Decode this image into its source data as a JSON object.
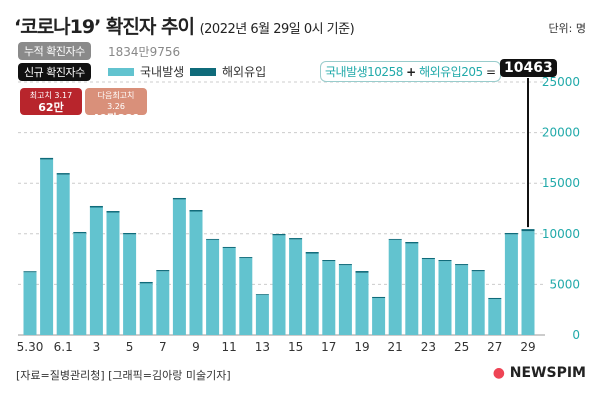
{
  "title": "‘코로나19’ 확진자 추이",
  "subtitle": "(2022년 6월 29일 0시 기준)",
  "unit": "단위: 명",
  "cumulative": {
    "label": "누적 확진자수",
    "value": "1834만9756"
  },
  "new_label": "신규 확진자수",
  "peaks": [
    {
      "label": "최고치 3.17",
      "value": "62만1328",
      "color": "#b8252c"
    },
    {
      "label": "다음최고치 3.26",
      "value": "49만881",
      "color": "#d9907a"
    }
  ],
  "callout": {
    "domestic": "국내발생10258",
    "plus": "+",
    "overseas": "해외유입205",
    "eq": "=",
    "total": "10463"
  },
  "footer": "[자료=질병관리청] [그래픽=김아랑 미술기자]",
  "logo": "NEWSPIM",
  "colors": {
    "domestic": "#62c3cf",
    "overseas": "#0f6b7a"
  },
  "chart_data": {
    "type": "bar",
    "stacked": true,
    "categories": [
      "5.30",
      "5.31",
      "6.1",
      "2",
      "3",
      "4",
      "5",
      "6",
      "7",
      "8",
      "9",
      "10",
      "11",
      "12",
      "13",
      "14",
      "15",
      "16",
      "17",
      "18",
      "19",
      "20",
      "21",
      "22",
      "23",
      "24",
      "25",
      "26",
      "27",
      "28",
      "29"
    ],
    "tick_labels": [
      "5.30",
      "6.1",
      "3",
      "5",
      "7",
      "9",
      "11",
      "13",
      "15",
      "17",
      "19",
      "21",
      "23",
      "25",
      "27",
      "29"
    ],
    "series": [
      {
        "name": "국내발생",
        "values": [
          6200,
          17350,
          15850,
          10050,
          12600,
          12100,
          9950,
          5100,
          6300,
          13400,
          12200,
          9400,
          8600,
          7600,
          3950,
          9850,
          9450,
          8050,
          7300,
          6900,
          6150,
          3650,
          9400,
          9050,
          7500,
          7300,
          6900,
          6300,
          3550,
          9950,
          10258
        ]
      },
      {
        "name": "해외유입",
        "values": [
          100,
          150,
          150,
          130,
          150,
          150,
          130,
          140,
          120,
          140,
          150,
          90,
          100,
          100,
          80,
          130,
          130,
          150,
          110,
          110,
          170,
          110,
          90,
          140,
          110,
          110,
          110,
          120,
          110,
          130,
          205
        ]
      }
    ],
    "ylim": [
      0,
      25000
    ],
    "yticks": [
      0,
      5000,
      10000,
      15000,
      20000,
      25000
    ],
    "grid": true
  }
}
